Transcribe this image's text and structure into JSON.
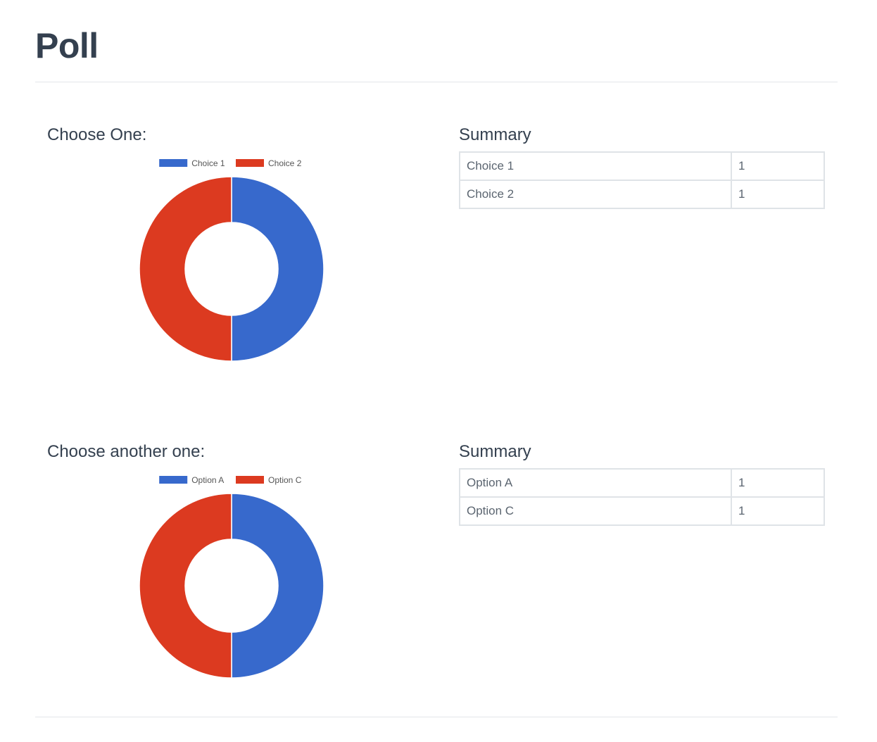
{
  "page": {
    "title": "Poll"
  },
  "polls": [
    {
      "question": "Choose One:",
      "summary_title": "Summary",
      "rows": [
        {
          "label": "Choice 1",
          "count": "1"
        },
        {
          "label": "Choice 2",
          "count": "1"
        }
      ]
    },
    {
      "question": "Choose another one:",
      "summary_title": "Summary",
      "rows": [
        {
          "label": "Option A",
          "count": "1"
        },
        {
          "label": "Option C",
          "count": "1"
        }
      ]
    }
  ],
  "chart_data": [
    {
      "type": "pie",
      "donut": true,
      "legend": "top",
      "categories": [
        "Choice 1",
        "Choice 2"
      ],
      "values": [
        1,
        1
      ],
      "colors": [
        "#3769cc",
        "#dc3a20"
      ]
    },
    {
      "type": "pie",
      "donut": true,
      "legend": "top",
      "categories": [
        "Option A",
        "Option C"
      ],
      "values": [
        1,
        1
      ],
      "colors": [
        "#3769cc",
        "#dc3a20"
      ]
    }
  ]
}
